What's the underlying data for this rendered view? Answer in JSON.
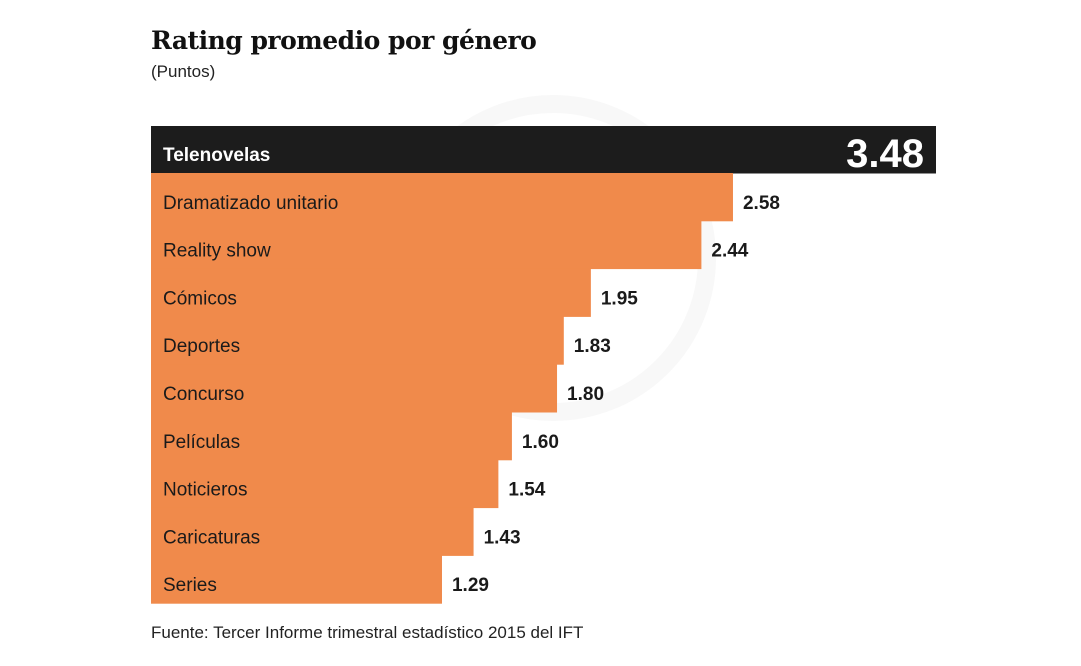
{
  "chart_data": {
    "type": "bar",
    "orientation": "horizontal",
    "title": "Rating promedio por género",
    "subtitle": "(Puntos)",
    "categories": [
      "Telenovelas",
      "Dramatizado unitario",
      "Reality show",
      "Cómicos",
      "Deportes",
      "Concurso",
      "Películas",
      "Noticieros",
      "Caricaturas",
      "Series"
    ],
    "values": [
      3.48,
      2.58,
      2.44,
      1.95,
      1.83,
      1.8,
      1.6,
      1.54,
      1.43,
      1.29
    ],
    "value_labels": [
      "3.48",
      "2.58",
      "2.44",
      "1.95",
      "1.83",
      "1.80",
      "1.60",
      "1.54",
      "1.43",
      "1.29"
    ],
    "highlight_index": 0,
    "colors": {
      "bar": "#f08a4b",
      "highlight": "#1c1c1c",
      "label": "#1a1a1a",
      "highlight_label": "#ffffff"
    },
    "xlim": [
      0,
      3.48
    ],
    "grid": false,
    "legend": "none",
    "source": "Fuente: Tercer Informe trimestral estadístico 2015 del IFT"
  }
}
